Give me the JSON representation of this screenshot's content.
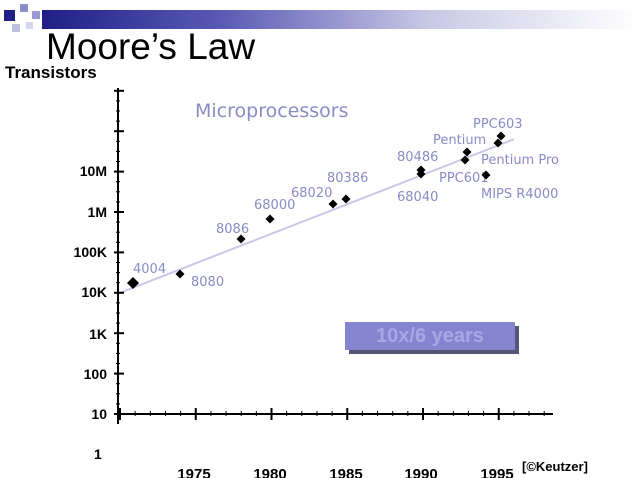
{
  "slide": {
    "title": "Moore’s Law",
    "credit": "[©Keutzer]",
    "corner_colors": [
      "#1f1f87",
      "#6b6bb8",
      "#b8b8dc"
    ]
  },
  "chart_data": {
    "type": "scatter",
    "title": "Microprocessors",
    "ylabel": "Transistors",
    "xlabel": "",
    "log_scale_y": true,
    "y_tick_labels": [
      "10",
      "100",
      "1K",
      "10K",
      "100K",
      "1M",
      "10M"
    ],
    "y_bottom_label": "1",
    "x_tick_labels": [
      "1975",
      "1980",
      "1985",
      "1990",
      "1995"
    ],
    "xlim": [
      1970,
      1998
    ],
    "ylim_log10": [
      1,
      9.5
    ],
    "grid": false,
    "annotation": "10x/6 years",
    "trend": {
      "x": [
        1970,
        1996
      ],
      "log10_y": [
        4,
        7.8
      ]
    },
    "points": [
      {
        "label": "4004",
        "x": 1971,
        "log10_y": 3.3
      },
      {
        "label": "8080",
        "x": 1974,
        "log10_y": 3.7
      },
      {
        "label": "8086",
        "x": 1978,
        "log10_y": 4.4
      },
      {
        "label": "68000",
        "x": 1980,
        "log10_y": 4.85
      },
      {
        "label": "80386",
        "x": 1984,
        "log10_y": 5.4
      },
      {
        "label": "68020",
        "x": 1985,
        "log10_y": 5.5
      },
      {
        "label": "80486",
        "x": 1990,
        "log10_y": 6.05
      },
      {
        "label": "68040",
        "x": 1990,
        "log10_y": 6.1
      },
      {
        "label": "Pentium",
        "x": 1993,
        "log10_y": 6.5
      },
      {
        "label": "PPC601",
        "x": 1993,
        "log10_y": 6.7
      },
      {
        "label": "PPC603",
        "x": 1995,
        "log10_y": 6.9
      },
      {
        "label": "Pentium Pro",
        "x": 1995,
        "log10_y": 7.2
      },
      {
        "label": "MIPS R4000",
        "x": 1994,
        "log10_y": 6.15
      }
    ],
    "colors": {
      "axis": "#000000",
      "marker": "#000000",
      "trend": "#c8c8e6",
      "label": "#8b8bc6"
    }
  }
}
